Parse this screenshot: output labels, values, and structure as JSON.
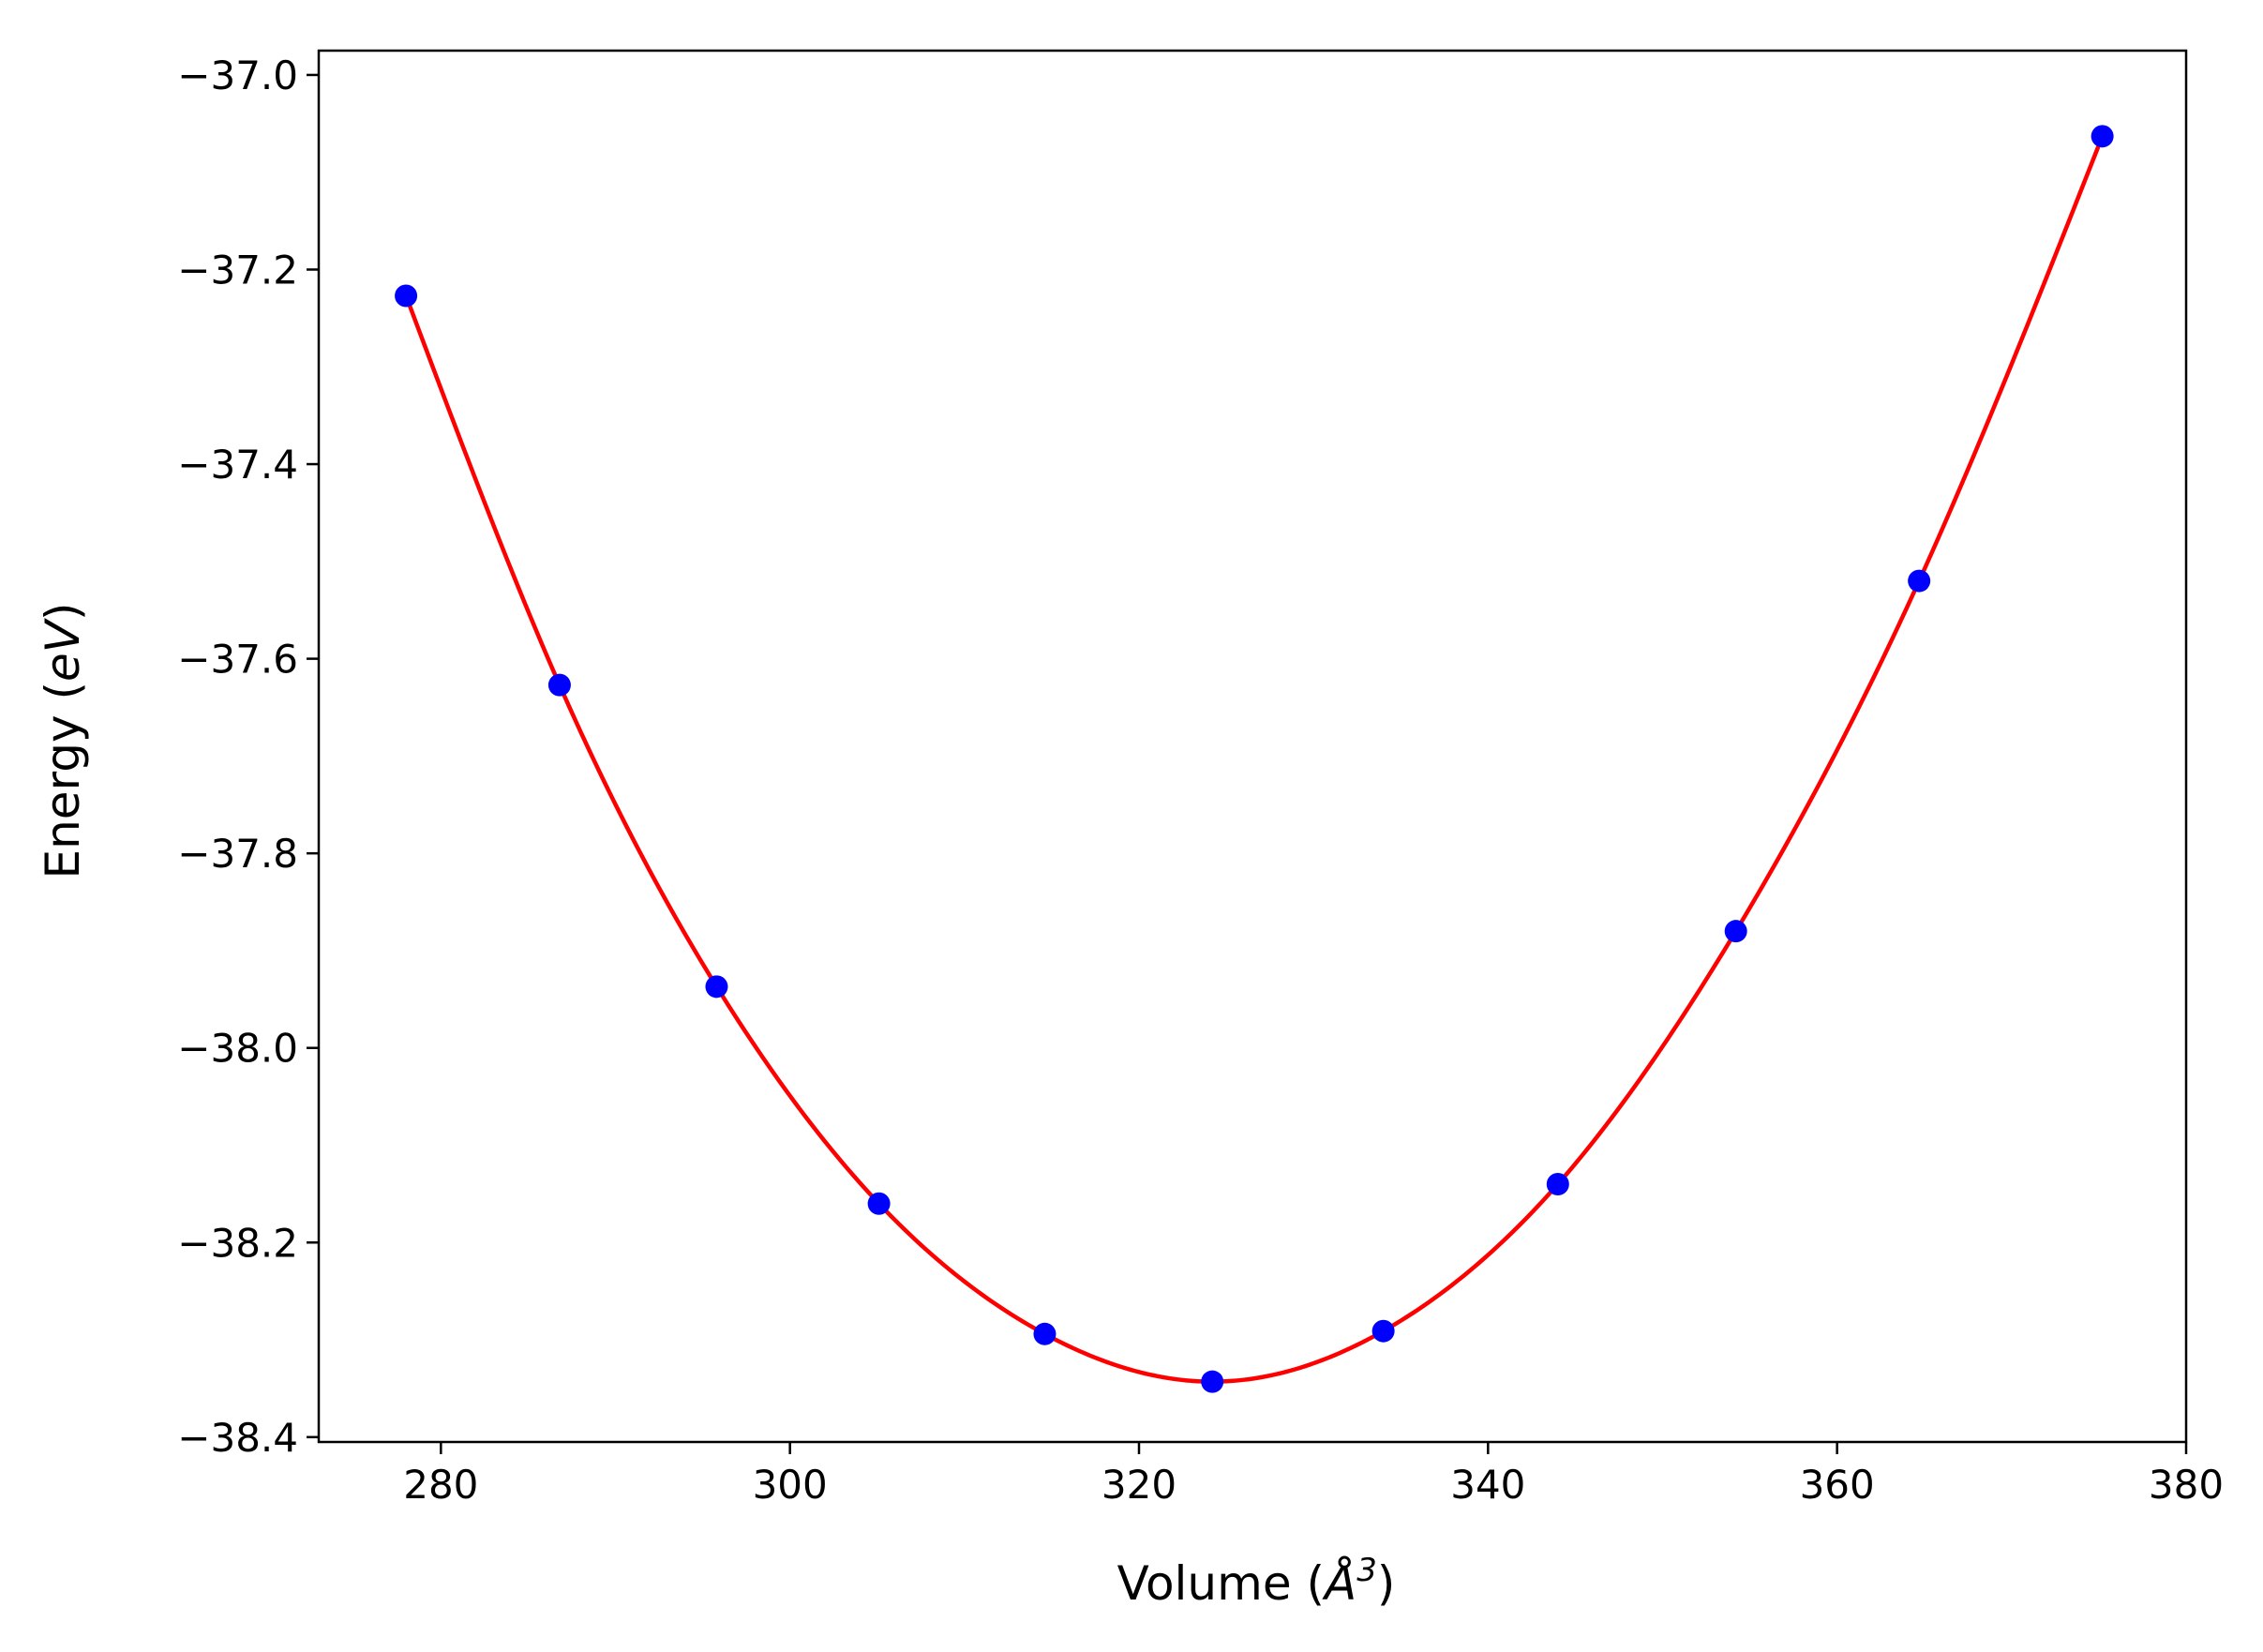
{
  "chart_data": {
    "type": "scatter",
    "xlabel": {
      "prefix": "Volume (",
      "unit": "Å",
      "power": "3",
      "suffix": ")"
    },
    "ylabel": {
      "prefix": "Energy (",
      "unit": "eV",
      "suffix": ")"
    },
    "xlim": [
      273,
      380
    ],
    "ylim": [
      -38.405,
      -36.975
    ],
    "xticks": [
      280,
      300,
      320,
      340,
      360,
      380
    ],
    "xtick_labels": [
      "280",
      "300",
      "320",
      "340",
      "360",
      "380"
    ],
    "yticks": [
      -37.0,
      -37.2,
      -37.4,
      -37.6,
      -37.8,
      -38.0,
      -38.2,
      -38.4
    ],
    "ytick_labels": [
      "−37.0",
      "−37.2",
      "−37.4",
      "−37.6",
      "−37.8",
      "−38.0",
      "−38.2",
      "−38.4"
    ],
    "grid": false,
    "series": [
      {
        "kind": "points",
        "color": "#0000ff",
        "x": [
          278.0,
          286.8,
          295.8,
          305.1,
          314.6,
          324.2,
          334.0,
          344.0,
          354.2,
          364.7,
          375.2
        ],
        "y": [
          -37.227,
          -37.627,
          -37.937,
          -38.16,
          -38.294,
          -38.343,
          -38.291,
          -38.14,
          -37.88,
          -37.52,
          -37.063
        ]
      },
      {
        "kind": "fit-curve",
        "color": "#ff0000",
        "x": [
          278.0,
          286.8,
          295.8,
          305.1,
          314.6,
          324.2,
          334.0,
          344.0,
          354.2,
          364.7,
          375.2
        ],
        "y": [
          -37.227,
          -37.627,
          -37.937,
          -38.16,
          -38.294,
          -38.343,
          -38.291,
          -38.14,
          -37.88,
          -37.52,
          -37.063
        ]
      }
    ]
  }
}
